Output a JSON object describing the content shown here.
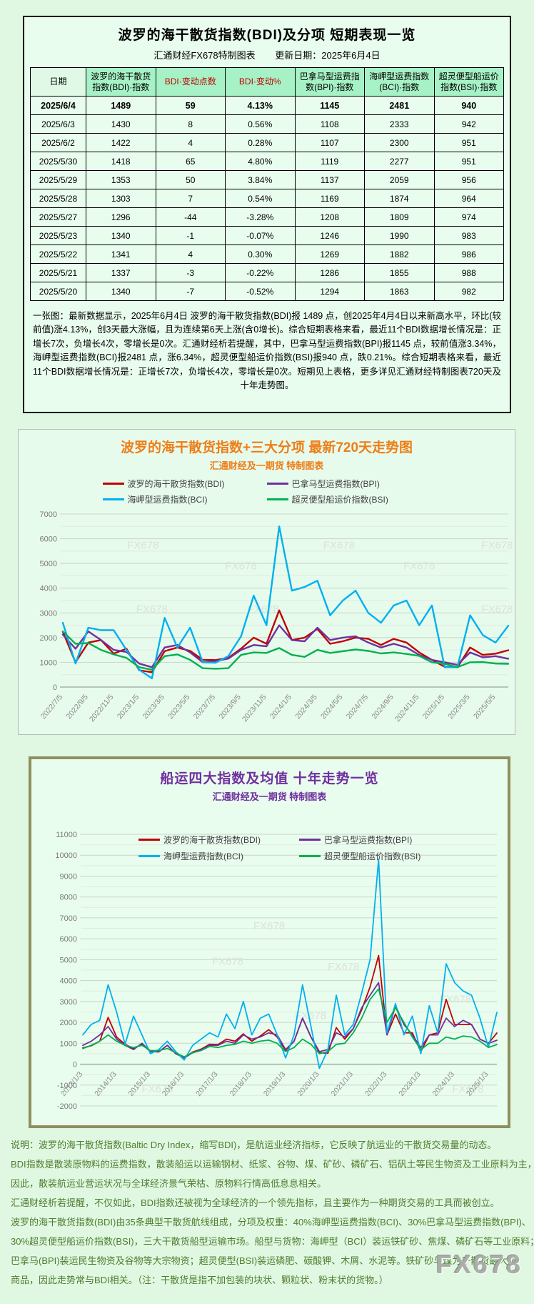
{
  "page": {
    "bg": "#e0f8e2",
    "watermark": "FX678"
  },
  "table_panel": {
    "title": "波罗的海干散货指数(BDI)及分项 短期表现一览",
    "source": "汇通财经FX678特制图表",
    "update_date": "更新日期：2025年6月4日",
    "columns": [
      "日期",
      "波罗的海干散货指数(BDI)·指数",
      "BDI·变动点数",
      "BDI·变动%",
      "巴拿马型运费指数(BPI)·指数",
      "海岬型运费指数(BCI)·指数",
      "超灵便型船运价指数(BSI)·指数"
    ],
    "red_columns": [
      2,
      3
    ],
    "rows": [
      [
        "2025/6/4",
        "1489",
        "59",
        "4.13%",
        "1145",
        "2481",
        "940"
      ],
      [
        "2025/6/3",
        "1430",
        "8",
        "0.56%",
        "1108",
        "2333",
        "942"
      ],
      [
        "2025/6/2",
        "1422",
        "4",
        "0.28%",
        "1107",
        "2300",
        "951"
      ],
      [
        "2025/5/30",
        "1418",
        "65",
        "4.80%",
        "1119",
        "2277",
        "951"
      ],
      [
        "2025/5/29",
        "1353",
        "50",
        "3.84%",
        "1137",
        "2059",
        "956"
      ],
      [
        "2025/5/28",
        "1303",
        "7",
        "0.54%",
        "1169",
        "1874",
        "964"
      ],
      [
        "2025/5/27",
        "1296",
        "-44",
        "-3.28%",
        "1208",
        "1809",
        "974"
      ],
      [
        "2025/5/23",
        "1340",
        "-1",
        "-0.07%",
        "1246",
        "1990",
        "983"
      ],
      [
        "2025/5/22",
        "1341",
        "4",
        "0.30%",
        "1269",
        "1882",
        "986"
      ],
      [
        "2025/5/21",
        "1337",
        "-3",
        "-0.22%",
        "1286",
        "1855",
        "988"
      ],
      [
        "2025/5/20",
        "1340",
        "-7",
        "-0.52%",
        "1294",
        "1863",
        "982"
      ]
    ],
    "note": "一张图：最新数据显示，2025年6月4日 波罗的海干散货指数(BDI)报 1489 点，创2025年4月4日以来新高水平，环比(较前值)涨4.13%，创3天最大涨幅，且为连续第6天上涨(含0增长)。综合短期表格来看，最近11个BDI数据增长情况是：正增长7次，负增长4次，零增长是0次。汇通财经析若提醒，其中，巴拿马型运费指数(BPI)报1145 点，较前值涨3.34%，海岬型运费指数(BCI)报2481 点，涨6.34%，超灵便型船运价指数(BSI)报940 点，跌0.21%。综合短期表格来看，最近11个BDI数据增长情况是：正增长7次，负增长4次，零增长是0次。短期见上表格，更多详见汇通财经特制图表720天及十年走势图。"
  },
  "chart_data": [
    {
      "type": "line",
      "title": "波罗的海干散货指数+三大分项 最新720天走势图",
      "subtitle": "汇通财经及一期货 特制图表",
      "ylim": [
        0,
        7000
      ],
      "grid_major": 1000,
      "grid_minor": 500,
      "grid": "on",
      "legend_position": "top",
      "xticks": [
        {
          "label": "2022/7/5",
          "i": 0
        },
        {
          "label": "2022/9/5",
          "i": 2
        },
        {
          "label": "2022/11/5",
          "i": 4
        },
        {
          "label": "2023/1/5",
          "i": 6
        },
        {
          "label": "2023/3/5",
          "i": 8
        },
        {
          "label": "2023/5/5",
          "i": 10
        },
        {
          "label": "2023/7/5",
          "i": 12
        },
        {
          "label": "2023/9/5",
          "i": 14
        },
        {
          "label": "2023/11/5",
          "i": 16
        },
        {
          "label": "2024/1/5",
          "i": 18
        },
        {
          "label": "2024/3/5",
          "i": 20
        },
        {
          "label": "2024/5/5",
          "i": 22
        },
        {
          "label": "2024/7/5",
          "i": 24
        },
        {
          "label": "2024/9/5",
          "i": 26
        },
        {
          "label": "2024/11/5",
          "i": 28
        },
        {
          "label": "2025/1/5",
          "i": 30
        },
        {
          "label": "2025/3/5",
          "i": 32
        },
        {
          "label": "2025/5/5",
          "i": 34
        }
      ],
      "series": [
        {
          "name": "波罗的海干散货指数(BDI)",
          "color": "#c00000",
          "values": [
            2240,
            1000,
            1800,
            1900,
            1350,
            1550,
            680,
            600,
            1450,
            1600,
            1460,
            1100,
            1090,
            1180,
            1550,
            2000,
            1750,
            3100,
            1900,
            2000,
            2350,
            1750,
            1850,
            2000,
            1950,
            1700,
            1950,
            1800,
            1400,
            1100,
            820,
            800,
            1600,
            1300,
            1350,
            1489
          ]
        },
        {
          "name": "巴拿马型运费指数(BPI)",
          "color": "#7030a0",
          "values": [
            2120,
            1550,
            2250,
            1900,
            1500,
            1420,
            950,
            800,
            1600,
            1700,
            1400,
            1000,
            1050,
            1150,
            1500,
            1700,
            1650,
            2500,
            1900,
            1850,
            2400,
            1900,
            2000,
            2050,
            1800,
            1600,
            1750,
            1600,
            1300,
            1100,
            1000,
            900,
            1400,
            1200,
            1250,
            1145
          ]
        },
        {
          "name": "海岬型运费指数(BCI)",
          "color": "#00b0f0",
          "values": [
            2600,
            950,
            2400,
            2300,
            2300,
            1500,
            700,
            350,
            2800,
            1600,
            2400,
            1000,
            980,
            1250,
            2050,
            3700,
            2500,
            6500,
            3900,
            4050,
            4300,
            2900,
            3500,
            3900,
            3000,
            2600,
            3300,
            3500,
            2500,
            3300,
            800,
            800,
            2900,
            2100,
            1800,
            2481
          ]
        },
        {
          "name": "超灵便型船运价指数(BSI)",
          "color": "#00b050",
          "values": [
            2250,
            1750,
            1780,
            1500,
            1320,
            1180,
            800,
            700,
            1250,
            1320,
            1100,
            760,
            740,
            760,
            1300,
            1400,
            1380,
            1580,
            1300,
            1220,
            1500,
            1380,
            1450,
            1520,
            1460,
            1360,
            1400,
            1340,
            1260,
            1000,
            940,
            800,
            1000,
            1010,
            950,
            940
          ]
        }
      ]
    },
    {
      "type": "line",
      "title": "船运四大指数及均值 十年走势一览",
      "subtitle": "汇通财经及一期货 特制图表",
      "ylim": [
        -2000,
        11000
      ],
      "grid_major": 1000,
      "grid_minor": 500,
      "grid": "on",
      "legend_position": "top-inside",
      "xticks": [
        {
          "label": "2013/1/3",
          "i": 0
        },
        {
          "label": "2014/1/3",
          "i": 4
        },
        {
          "label": "2015/1/3",
          "i": 8
        },
        {
          "label": "2016/1/3",
          "i": 12
        },
        {
          "label": "2017/1/3",
          "i": 16
        },
        {
          "label": "2018/1/3",
          "i": 20
        },
        {
          "label": "2019/1/3",
          "i": 24
        },
        {
          "label": "2020/1/3",
          "i": 28
        },
        {
          "label": "2021/1/3",
          "i": 32
        },
        {
          "label": "2022/1/3",
          "i": 36
        },
        {
          "label": "2023/1/3",
          "i": 40
        },
        {
          "label": "2024/1/3",
          "i": 44
        },
        {
          "label": "2025/1/3",
          "i": 48
        }
      ],
      "series": [
        {
          "name": "波罗的海干散货指数(BDI)",
          "color": "#c00000",
          "values": [
            780,
            880,
            1100,
            2240,
            1300,
            950,
            750,
            950,
            600,
            590,
            900,
            500,
            320,
            580,
            720,
            950,
            940,
            1200,
            1100,
            1450,
            1100,
            1350,
            1650,
            1300,
            650,
            1100,
            2200,
            1300,
            550,
            520,
            1750,
            1200,
            1700,
            2600,
            3700,
            5200,
            1400,
            2400,
            1500,
            1500,
            600,
            1400,
            1500,
            3100,
            1900,
            1900,
            1900,
            1200,
            1000,
            1489
          ]
        },
        {
          "name": "巴拿马型运费指数(BPI)",
          "color": "#7030a0",
          "values": [
            900,
            1100,
            1400,
            1800,
            1200,
            900,
            700,
            1000,
            600,
            600,
            900,
            500,
            300,
            550,
            700,
            900,
            900,
            1100,
            1000,
            1400,
            1200,
            1300,
            1500,
            1400,
            700,
            1100,
            2200,
            1300,
            600,
            700,
            1500,
            1300,
            1700,
            2700,
            3300,
            3900,
            1400,
            2800,
            1900,
            1400,
            800,
            1400,
            1400,
            2200,
            1800,
            2100,
            1900,
            1200,
            1000,
            1145
          ]
        },
        {
          "name": "海岬型运费指数(BCI)",
          "color": "#00b0f0",
          "values": [
            1400,
            1900,
            2100,
            3800,
            2500,
            950,
            2300,
            1400,
            500,
            700,
            1100,
            600,
            200,
            900,
            1200,
            1500,
            1300,
            2400,
            1700,
            3000,
            1400,
            2200,
            2400,
            1400,
            300,
            1400,
            3800,
            1800,
            -200,
            700,
            3300,
            1400,
            1900,
            3400,
            5000,
            9800,
            1500,
            2900,
            1400,
            2300,
            500,
            2800,
            1500,
            4800,
            3900,
            3500,
            3300,
            2200,
            800,
            2481
          ]
        },
        {
          "name": "超灵便型船运价指数(BSI)",
          "color": "#00b050",
          "values": [
            750,
            900,
            1100,
            1400,
            1100,
            900,
            800,
            900,
            650,
            650,
            750,
            550,
            350,
            550,
            650,
            850,
            800,
            900,
            950,
            1100,
            1000,
            1100,
            1150,
            1000,
            600,
            800,
            1200,
            950,
            500,
            600,
            950,
            1000,
            1500,
            2200,
            3100,
            3600,
            2000,
            2700,
            2000,
            1300,
            700,
            1000,
            1000,
            1300,
            1200,
            1350,
            1300,
            1100,
            800,
            940
          ]
        }
      ]
    }
  ],
  "footer": {
    "lines": [
      "说明：波罗的海干散货指数(Baltic Dry Index，缩写BDI)，是航运业经济指标，它反映了航运业的干散货交易量的动态。",
      "BDI指数是散装原物料的运费指数，散装船运以运输钢材、纸浆、谷物、煤、矿砂、磷矿石、铝矾土等民生物资及工业原料为主，",
      "因此，散装航运业营运状况与全球经济景气荣枯、原物料行情高低息息相关。",
      "汇通财经析若提醒，不仅如此，BDI指数还被视为全球经济的一个领先指标，且主要作为一种期货交易的工具而被创立。",
      "波罗的海干散货指数(BDI)由35条典型干散货航线组成，分项及权重：40%海岬型运费指数(BCI)、30%巴拿马型运费指数(BPI)、",
      "30%超灵便型船运价指数(BSI)，三大干散货船型运输市场。船型与货物：海岬型（BCI）装运铁矿砂、焦煤、磷矿石等工业原料；",
      "巴拿马(BPI)装运民生物资及谷物等大宗物资；超灵便型(BSI)装运磷肥、碳酸钾、木屑、水泥等。铁矿砂与煤为干散货最大宗",
      "商品，因此走势常与BDI相关。（注：干散货是指不加包装的块状、颗粒状、粉末状的货物。）"
    ],
    "watermark": "FX678"
  }
}
